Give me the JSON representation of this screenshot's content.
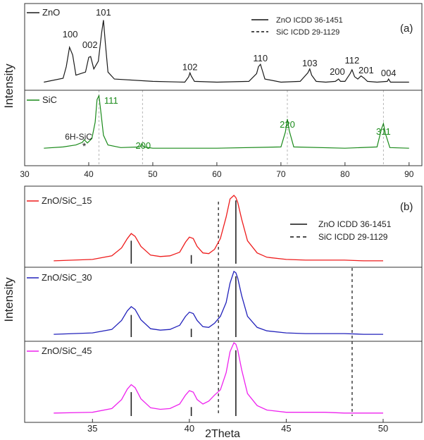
{
  "figure": {
    "ylabel": "Intensity",
    "xlabel": "2Theta"
  },
  "colors": {
    "zno": "#1a1a1a",
    "sic": "#1a8a1a",
    "s15": "#ee1c1c",
    "s30": "#2222bb",
    "s45": "#ee22ee",
    "axis": "#333333"
  },
  "chart_data": [
    {
      "type": "line",
      "panel_label": "(a)",
      "xlim": [
        30,
        92
      ],
      "xticks": [
        30,
        40,
        50,
        60,
        70,
        80,
        90
      ],
      "ylabel": "Intensity",
      "legend": {
        "position": "top-right",
        "entries": [
          {
            "label": "ZnO ICDD 36-1451",
            "style": "solid"
          },
          {
            "label": "SiC ICDD 29-1129",
            "style": "dashed"
          }
        ]
      },
      "subplots": [
        {
          "name": "ZnO",
          "color": "#1a1a1a",
          "baseline": 0.05,
          "x_range": [
            33,
            90
          ],
          "peaks": [
            {
              "x": 31.8,
              "h": 0.47,
              "label": "100",
              "label_x": 37.1
            },
            {
              "x": 34.4,
              "h": 0.35,
              "label": "002",
              "label_x": 40.2
            },
            {
              "x": 36.3,
              "h": 0.82,
              "label": "101",
              "label_x": 42.3
            },
            {
              "x": 47.5,
              "h": 0.16,
              "label": "102",
              "label_x": 55.8
            },
            {
              "x": 56.6,
              "h": 0.24,
              "label": "110",
              "label_x": 66.8
            },
            {
              "x": 62.9,
              "h": 0.2,
              "label": "103",
              "label_x": 74.5
            },
            {
              "x": 66.4,
              "h": 0.05,
              "label": "200",
              "label_x": 78.8
            },
            {
              "x": 67.9,
              "h": 0.18,
              "label": "112",
              "label_x": 81.1
            },
            {
              "x": 69.1,
              "h": 0.08,
              "label": "201",
              "label_x": 83.3
            },
            {
              "x": 72.6,
              "h": 0.02,
              "label": "004",
              "label_x": 86.8
            }
          ],
          "data_x": [
            33.0,
            36.0,
            36.5,
            37.0,
            37.5,
            38.0,
            39.5,
            40.0,
            40.3,
            40.8,
            41.5,
            42.0,
            42.3,
            42.6,
            43.0,
            44.0,
            50.0,
            55.0,
            55.6,
            55.8,
            56.0,
            56.5,
            60.0,
            65.0,
            66.2,
            66.5,
            66.8,
            67.1,
            67.5,
            70.0,
            73.0,
            74.2,
            74.5,
            74.8,
            75.5,
            77.0,
            78.5,
            79.0,
            79.3,
            80.0,
            80.8,
            81.1,
            81.5,
            82.0,
            82.5,
            83.0,
            83.5,
            85.0,
            86.6,
            86.8,
            87.1,
            88.0,
            90.0
          ],
          "data_y": [
            0.05,
            0.1,
            0.25,
            0.5,
            0.4,
            0.14,
            0.18,
            0.37,
            0.38,
            0.22,
            0.32,
            0.68,
            0.85,
            0.55,
            0.18,
            0.09,
            0.06,
            0.05,
            0.12,
            0.17,
            0.13,
            0.06,
            0.05,
            0.06,
            0.16,
            0.25,
            0.28,
            0.2,
            0.09,
            0.05,
            0.06,
            0.17,
            0.22,
            0.14,
            0.06,
            0.05,
            0.06,
            0.09,
            0.06,
            0.06,
            0.16,
            0.21,
            0.12,
            0.09,
            0.13,
            0.1,
            0.06,
            0.05,
            0.06,
            0.09,
            0.05,
            0.05,
            0.05
          ]
        },
        {
          "name": "SiC",
          "color": "#1a8a1a",
          "baseline": 0.15,
          "x_range": [
            33,
            90
          ],
          "peaks": [
            {
              "x": 41.5,
              "h": 0.82,
              "label": "111",
              "label_x": 43.5
            },
            {
              "x": 48.3,
              "h": 0.07,
              "label": "200",
              "label_x": 48.5
            },
            {
              "x": 71.1,
              "h": 0.45,
              "label": "220",
              "label_x": 71.0
            },
            {
              "x": 86.0,
              "h": 0.38,
              "label": "311",
              "label_x": 86.0
            }
          ],
          "annotation": {
            "label": "6H-SiC",
            "marker": "*",
            "x": 39.3
          },
          "data_x": [
            33.0,
            36.0,
            38.0,
            39.0,
            39.3,
            39.8,
            40.5,
            41.0,
            41.3,
            41.6,
            41.9,
            42.3,
            43.0,
            45.0,
            48.0,
            48.3,
            48.6,
            50.0,
            60.0,
            70.0,
            70.7,
            71.0,
            71.3,
            72.0,
            80.0,
            85.0,
            85.7,
            86.0,
            86.3,
            87.0,
            90.0
          ],
          "data_y": [
            0.15,
            0.17,
            0.2,
            0.24,
            0.28,
            0.23,
            0.3,
            0.55,
            0.9,
            0.96,
            0.7,
            0.35,
            0.2,
            0.16,
            0.17,
            0.22,
            0.17,
            0.15,
            0.15,
            0.17,
            0.4,
            0.6,
            0.42,
            0.17,
            0.15,
            0.17,
            0.45,
            0.53,
            0.38,
            0.16,
            0.15
          ]
        }
      ],
      "reference_lines": {
        "zno_solid": [],
        "sic_dashed": [
          41.6,
          48.4,
          71.0,
          86.0
        ]
      }
    },
    {
      "type": "line",
      "panel_label": "(b)",
      "xlim": [
        31.5,
        52.0
      ],
      "xticks": [
        35,
        40,
        45,
        50
      ],
      "xlabel": "2Theta",
      "ylabel": "Intensity",
      "legend": {
        "position": "top-right",
        "entries": [
          {
            "label": "ZnO ICDD 36-1451",
            "style": "solid"
          },
          {
            "label": "SiC ICDD 29-1129",
            "style": "dashed"
          }
        ]
      },
      "reference_lines": {
        "zno_solid": [
          37.0,
          40.1,
          42.4
        ],
        "sic_dashed": [
          41.5,
          48.4
        ]
      },
      "series": [
        {
          "name": "ZnO/SiC_15",
          "color": "#ee1c1c",
          "data_x": [
            33.0,
            35.0,
            36.0,
            36.5,
            36.8,
            37.0,
            37.2,
            37.5,
            38.0,
            38.5,
            39.0,
            39.5,
            39.8,
            40.0,
            40.2,
            40.4,
            40.7,
            41.0,
            41.3,
            41.6,
            41.9,
            42.1,
            42.3,
            42.4,
            42.5,
            42.7,
            43.0,
            43.5,
            44.0,
            45.0,
            46.0,
            47.0,
            48.0,
            49.0,
            50.0
          ],
          "data_y": [
            0.04,
            0.06,
            0.11,
            0.22,
            0.35,
            0.42,
            0.38,
            0.24,
            0.12,
            0.1,
            0.11,
            0.16,
            0.3,
            0.37,
            0.35,
            0.24,
            0.15,
            0.14,
            0.2,
            0.35,
            0.65,
            0.9,
            0.95,
            0.92,
            0.85,
            0.62,
            0.32,
            0.15,
            0.09,
            0.06,
            0.05,
            0.05,
            0.05,
            0.04,
            0.04
          ]
        },
        {
          "name": "ZnO/SiC_30",
          "color": "#2222bb",
          "data_x": [
            33.0,
            35.0,
            36.0,
            36.5,
            36.8,
            37.0,
            37.2,
            37.5,
            38.0,
            38.5,
            39.0,
            39.5,
            39.8,
            40.0,
            40.2,
            40.4,
            40.7,
            41.0,
            41.3,
            41.6,
            41.9,
            42.1,
            42.3,
            42.4,
            42.5,
            42.7,
            43.0,
            43.5,
            44.0,
            45.0,
            46.0,
            47.0,
            48.0,
            49.0,
            50.0
          ],
          "data_y": [
            0.04,
            0.06,
            0.11,
            0.24,
            0.38,
            0.44,
            0.4,
            0.25,
            0.12,
            0.1,
            0.11,
            0.17,
            0.3,
            0.36,
            0.34,
            0.24,
            0.15,
            0.14,
            0.2,
            0.3,
            0.5,
            0.78,
            0.95,
            0.93,
            0.85,
            0.6,
            0.3,
            0.14,
            0.09,
            0.06,
            0.05,
            0.05,
            0.05,
            0.04,
            0.04
          ]
        },
        {
          "name": "ZnO/SiC_45",
          "color": "#ee22ee",
          "data_x": [
            33.0,
            35.0,
            36.0,
            36.5,
            36.8,
            37.0,
            37.2,
            37.5,
            38.0,
            38.5,
            39.0,
            39.5,
            39.8,
            40.0,
            40.2,
            40.4,
            40.7,
            41.0,
            41.3,
            41.6,
            41.9,
            42.1,
            42.3,
            42.4,
            42.5,
            42.7,
            43.0,
            43.5,
            44.0,
            45.0,
            46.0,
            47.0,
            48.0,
            49.0,
            50.0
          ],
          "data_y": [
            0.04,
            0.05,
            0.1,
            0.22,
            0.36,
            0.42,
            0.38,
            0.23,
            0.11,
            0.09,
            0.1,
            0.16,
            0.28,
            0.34,
            0.32,
            0.22,
            0.16,
            0.2,
            0.28,
            0.35,
            0.58,
            0.86,
            0.98,
            0.96,
            0.88,
            0.62,
            0.3,
            0.14,
            0.08,
            0.05,
            0.05,
            0.05,
            0.04,
            0.04,
            0.04
          ]
        }
      ]
    }
  ]
}
